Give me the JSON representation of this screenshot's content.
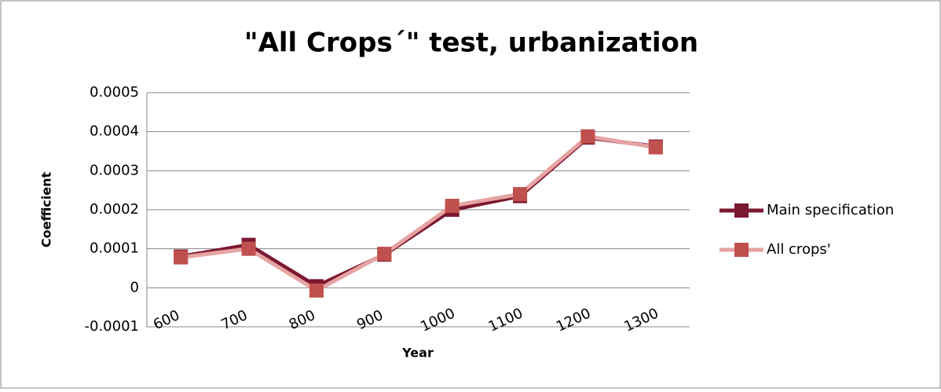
{
  "chart_data": {
    "type": "line",
    "title": "\"All Crops´\" test, urbanization",
    "x_label": "Year",
    "y_label": "Coefficient",
    "categories": [
      "600",
      "700",
      "800",
      "900",
      "1000",
      "1100",
      "1200",
      "1300"
    ],
    "series": [
      {
        "name": "Main specification",
        "color": "#7b1830",
        "marker_color": "#7b1830",
        "values": [
          8e-05,
          0.00011,
          4e-06,
          8.5e-05,
          0.0002,
          0.000235,
          0.000385,
          0.000362
        ]
      },
      {
        "name": "All crops'",
        "color": "#e6a3a3",
        "marker_color": "#c0504d",
        "values": [
          7.8e-05,
          0.0001,
          -7e-06,
          8.7e-05,
          0.00021,
          0.00024,
          0.000388,
          0.00036
        ]
      }
    ],
    "ylim": [
      -0.0001,
      0.0005
    ],
    "yticks": [
      -0.0001,
      0,
      0.0001,
      0.0002,
      0.0003,
      0.0004,
      0.0005
    ],
    "grid": true,
    "legend": "right"
  }
}
